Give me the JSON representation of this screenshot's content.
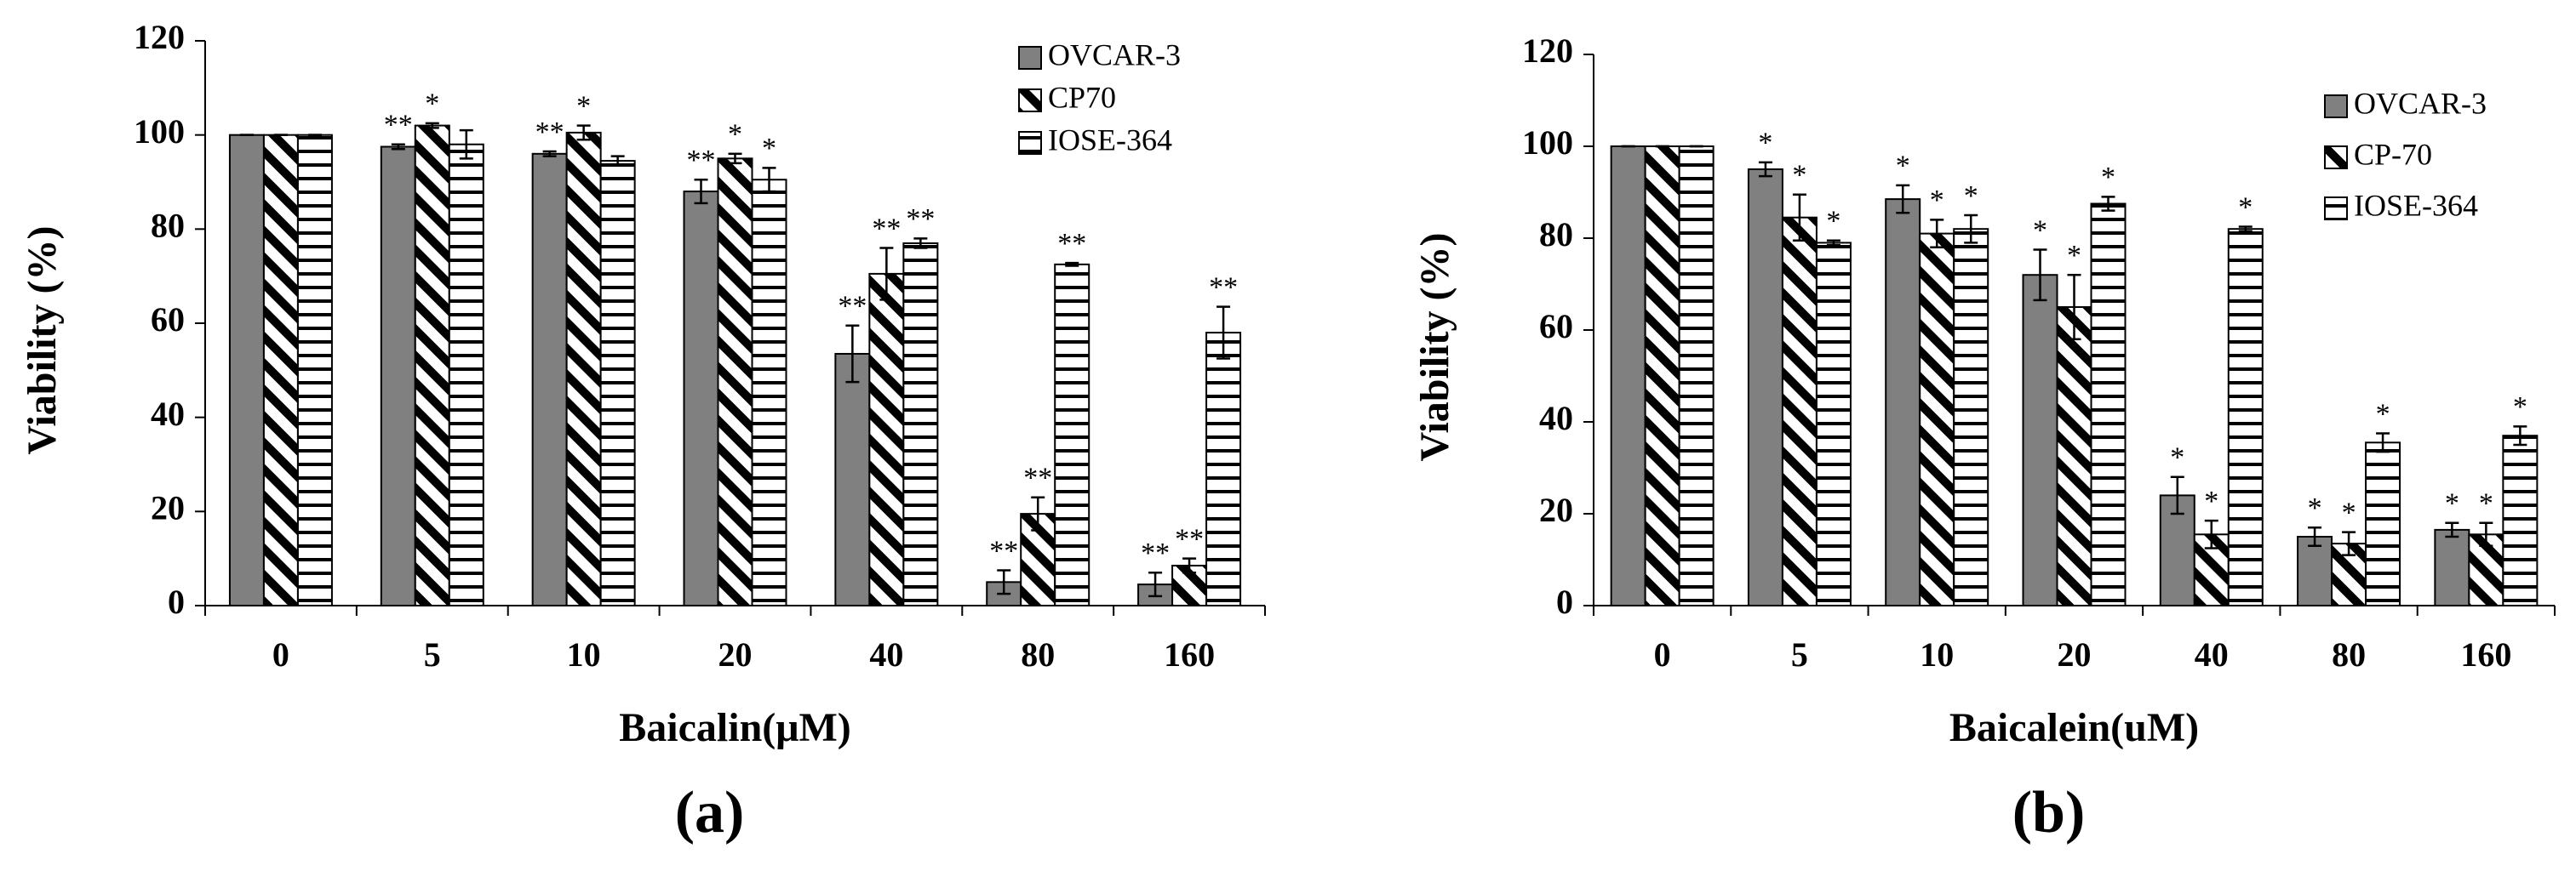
{
  "chart_data": [
    {
      "type": "bar",
      "panel_label": "(a)",
      "x_label": "Baicalin(μM)",
      "y_label": "Viability (%)",
      "categories": [
        "0",
        "5",
        "10",
        "20",
        "40",
        "80",
        "160"
      ],
      "ylim": [
        0,
        120
      ],
      "yticks": [
        0,
        20,
        40,
        60,
        80,
        100,
        120
      ],
      "series": [
        {
          "name": "OVCAR-3",
          "color": "#808080",
          "pattern": "solid",
          "values": [
            100,
            97.5,
            96,
            88,
            53.5,
            5,
            4.5
          ],
          "errors": [
            0,
            0.5,
            0.5,
            2.5,
            6,
            2.5,
            2.5
          ],
          "significance": [
            null,
            "**",
            "**",
            "**",
            "**",
            "**",
            "**"
          ]
        },
        {
          "name": "CP70",
          "color": "#000000",
          "pattern": "diagonal",
          "values": [
            100,
            102,
            100.5,
            95,
            70.5,
            19.5,
            8.5
          ],
          "errors": [
            0,
            0.5,
            1.5,
            1,
            5.5,
            3.5,
            1.5
          ],
          "significance": [
            null,
            "*",
            "*",
            "*",
            "**",
            "**",
            "**"
          ]
        },
        {
          "name": "IOSE-364",
          "color": "#000000",
          "pattern": "horizontal",
          "values": [
            100,
            98,
            94.5,
            90.5,
            77,
            72.5,
            58
          ],
          "errors": [
            0,
            3,
            1,
            2.5,
            1,
            0.3,
            5.5
          ],
          "significance": [
            null,
            null,
            null,
            "*",
            "**",
            "**",
            "**"
          ]
        }
      ]
    },
    {
      "type": "bar",
      "panel_label": "(b)",
      "x_label": "Baicalein(uM)",
      "y_label": "Viability (%)",
      "categories": [
        "0",
        "5",
        "10",
        "20",
        "40",
        "80",
        "160"
      ],
      "ylim": [
        0,
        120
      ],
      "yticks": [
        0,
        20,
        40,
        60,
        80,
        100,
        120
      ],
      "series": [
        {
          "name": "OVCAR-3",
          "color": "#808080",
          "pattern": "solid",
          "values": [
            100,
            95,
            88.5,
            72,
            24,
            15,
            16.5
          ],
          "errors": [
            0,
            1.5,
            3,
            5.5,
            4,
            2,
            1.5
          ],
          "significance": [
            null,
            "*",
            "*",
            "*",
            "*",
            "*",
            "*"
          ]
        },
        {
          "name": "CP-70",
          "color": "#000000",
          "pattern": "diagonal",
          "values": [
            100,
            84.5,
            81,
            65,
            15.5,
            13.5,
            15.5
          ],
          "errors": [
            0,
            5,
            3,
            7,
            3,
            2.5,
            2.5
          ],
          "significance": [
            null,
            "*",
            "*",
            "*",
            "*",
            "*",
            "*"
          ]
        },
        {
          "name": "IOSE-364",
          "color": "#000000",
          "pattern": "horizontal",
          "values": [
            100,
            79,
            82,
            87.5,
            82,
            35.5,
            37
          ],
          "errors": [
            0,
            0.5,
            3,
            1.5,
            0.5,
            2,
            2
          ],
          "significance": [
            null,
            "*",
            "*",
            "*",
            "*",
            "*",
            "*"
          ]
        }
      ]
    }
  ]
}
